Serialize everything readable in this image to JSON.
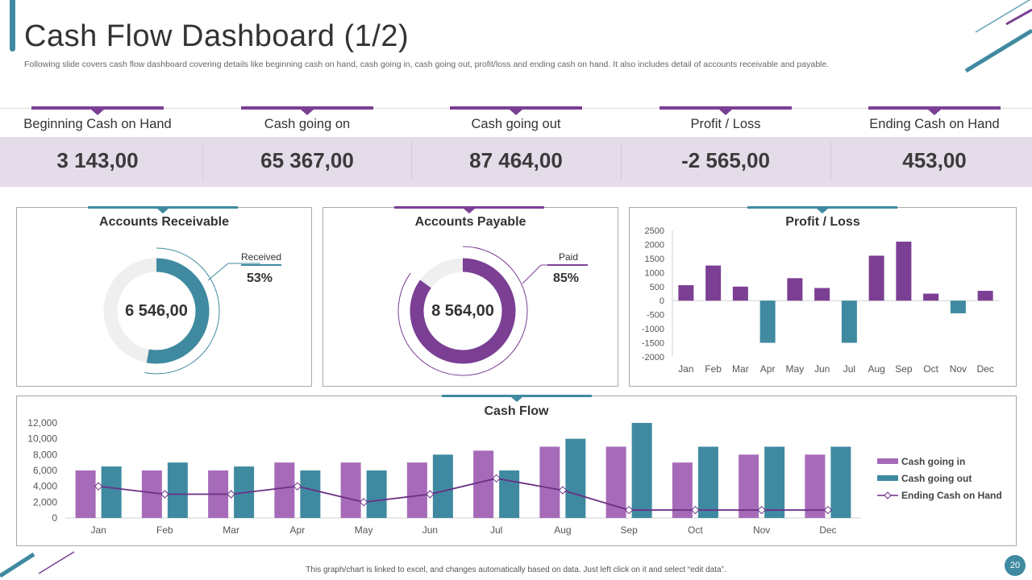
{
  "header": {
    "title": "Cash Flow Dashboard (1/2)",
    "subtitle": "Following slide covers cash flow dashboard covering details like beginning cash on hand, cash going in, cash going out, profit/loss and ending cash on hand. It also includes detail of accounts receivable and payable."
  },
  "colors": {
    "purple": "#7b3f94",
    "light_purple": "#a66bb8",
    "teal": "#3f8aa0",
    "band": "#e5dcea",
    "line": "#6b2f85"
  },
  "kpis": [
    {
      "label": "Beginning Cash on Hand",
      "value": "3 143,00"
    },
    {
      "label": "Cash going on",
      "value": "65 367,00"
    },
    {
      "label": "Cash going out",
      "value": "87 464,00"
    },
    {
      "label": "Profit / Loss",
      "value": "-2 565,00"
    },
    {
      "label": "Ending Cash on Hand",
      "value": "453,00"
    }
  ],
  "receivable": {
    "title": "Accounts Receivable",
    "center": "6 546,00",
    "callout_label": "Received",
    "callout_pct": "53%",
    "fraction": 0.53
  },
  "payable": {
    "title": "Accounts Payable",
    "center": "8 564,00",
    "callout_label": "Paid",
    "callout_pct": "85%",
    "fraction": 0.85
  },
  "chart_data": [
    {
      "type": "bar",
      "title": "Profit / Loss",
      "categories": [
        "Jan",
        "Feb",
        "Mar",
        "Apr",
        "May",
        "Jun",
        "Jul",
        "Aug",
        "Sep",
        "Oct",
        "Nov",
        "Dec"
      ],
      "values": [
        550,
        1250,
        500,
        -1500,
        800,
        450,
        -1500,
        1600,
        2100,
        250,
        -450,
        350
      ],
      "yticks": [
        "2500",
        "2000",
        "1500",
        "1000",
        "500",
        "0",
        "-500",
        "-1000",
        "-1500",
        "-2000"
      ],
      "ylim": [
        -2000,
        2500
      ]
    },
    {
      "type": "bar",
      "title": "Cash Flow",
      "categories": [
        "Jan",
        "Feb",
        "Mar",
        "Apr",
        "May",
        "Jun",
        "Jul",
        "Aug",
        "Sep",
        "Oct",
        "Nov",
        "Dec"
      ],
      "series": [
        {
          "name": "Cash going in",
          "type": "bar",
          "values": [
            6000,
            6000,
            6000,
            7000,
            7000,
            7000,
            8500,
            9000,
            9000,
            7000,
            8000,
            8000
          ]
        },
        {
          "name": "Cash going out",
          "type": "bar",
          "values": [
            6500,
            7000,
            6500,
            6000,
            6000,
            8000,
            6000,
            10000,
            12000,
            9000,
            9000,
            9000
          ]
        },
        {
          "name": "Ending Cash on Hand",
          "type": "line",
          "values": [
            4000,
            3000,
            3000,
            4000,
            2000,
            3000,
            5000,
            3500,
            1000,
            1000,
            1000,
            1000
          ]
        }
      ],
      "yticks": [
        "12,000",
        "10,000",
        "8,000",
        "6,000",
        "4,000",
        "2,000",
        "0"
      ],
      "ylim": [
        0,
        12000
      ]
    }
  ],
  "footer": {
    "note": "This graph/chart is linked to excel, and changes automatically based on data. Just left click on it and select “edit data”.",
    "page": "20"
  }
}
